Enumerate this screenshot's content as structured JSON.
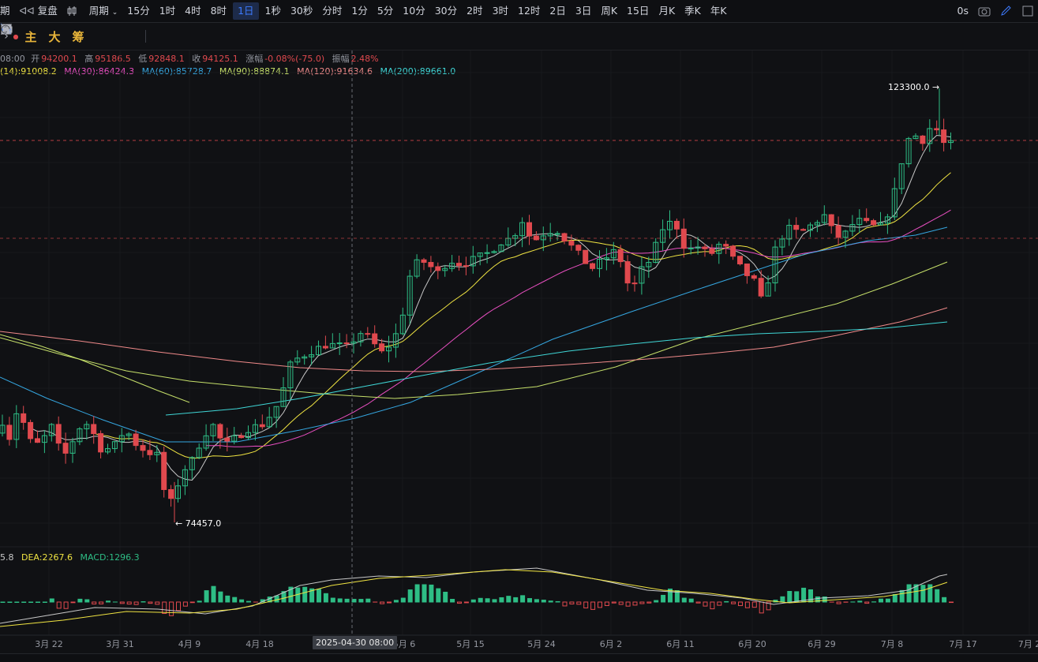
{
  "toolbar": {
    "left_cut": "期",
    "replay": "复盘",
    "period_menu": "周期",
    "intervals": [
      "15分",
      "1时",
      "4时",
      "8时",
      "1日",
      "1秒",
      "30秒",
      "分时",
      "1分",
      "5分",
      "10分",
      "30分",
      "2时",
      "3时",
      "12时",
      "2日",
      "3日",
      "周K",
      "15日",
      "月K",
      "季K",
      "年K"
    ],
    "active_interval": "1日",
    "countdown": "0s"
  },
  "toolbar2": {
    "main_label": "主",
    "big_label": "大",
    "chip_label": "筹"
  },
  "ohlc": {
    "time_cut": "08:00",
    "open_label": "开",
    "open": "94200.1",
    "high_label": "高",
    "high": "95186.5",
    "low_label": "低",
    "low": "92848.1",
    "close_label": "收",
    "close": "94125.1",
    "change_label": "涨幅",
    "change": "-0.08%(-75.0)",
    "amp_label": "振幅",
    "amp": "2.48%"
  },
  "ma_line": {
    "ma14": "(14):91008.2",
    "ma30": "MA(30):86424.3",
    "ma60": "MA(60):85728.7",
    "ma90": "MA(90):88874.1",
    "ma120": "MA(120):91634.6",
    "ma200": "MA(200):89661.0"
  },
  "macd_line": {
    "dif_cut": "5.8",
    "dea": "DEA:2267.6",
    "macd": "MACD:1296.3"
  },
  "colors": {
    "up": "#2ebd85",
    "down": "#e0494e",
    "ma_white": "#c8c8c8",
    "ma14": "#f0e442",
    "ma30": "#e94fc1",
    "ma60": "#35a6e0",
    "ma90": "#c6e06a",
    "ma120": "#f08a8a",
    "ma200": "#3fd6d6"
  },
  "annotations": {
    "high_marker": "123300.0",
    "low_marker": "74457.0"
  },
  "crosshair_date": "2025-04-30 08:00",
  "x_axis_labels": [
    "3月 22",
    "3月 31",
    "4月 9",
    "4月 18",
    "5月 6",
    "5月 15",
    "5月 24",
    "6月 2",
    "6月 11",
    "6月 20",
    "6月 29",
    "7月 8",
    "7月 17",
    "7月 2"
  ],
  "chart_data": {
    "type": "candlestick",
    "series": [
      {
        "name": "MA(30)",
        "last": 86424.3
      },
      {
        "name": "MA(60)",
        "last": 85728.7
      },
      {
        "name": "MA(90)",
        "last": 88874.1
      },
      {
        "name": "MA(120)",
        "last": 91634.6
      },
      {
        "name": "MA(200)",
        "last": 89661.0
      }
    ],
    "high": 123300.0,
    "low": 74457.0,
    "macd": {
      "dea": 2267.6,
      "macd": 1296.3
    }
  }
}
